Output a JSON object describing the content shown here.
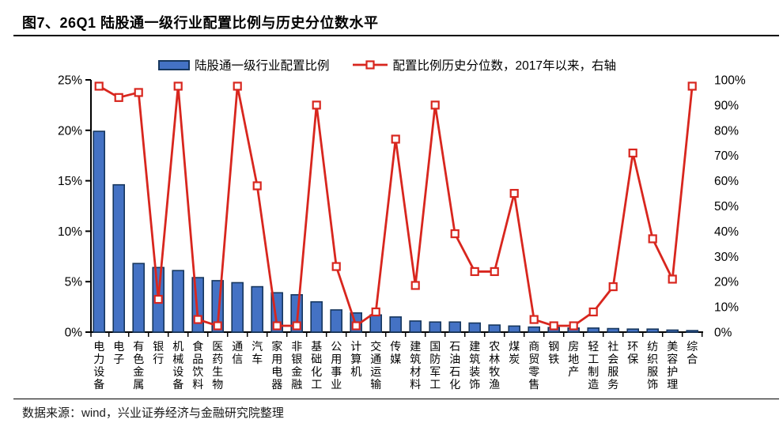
{
  "header": {
    "title": "图7、26Q1 陆股通一级行业配置比例与历史分位数水平"
  },
  "legend": {
    "bar_label": "陆股通一级行业配置比例",
    "line_label": "配置比例历史分位数，2017年以来，右轴"
  },
  "footer": {
    "source": "数据来源：wind，兴业证券经济与金融研究院整理"
  },
  "colors": {
    "bar_fill": "#4472c4",
    "bar_border": "#17375e",
    "line_red": "#d8261e",
    "axis_black": "#000000"
  },
  "chart_data": {
    "type": "bar",
    "combo": "bar+line",
    "title": "图7、26Q1 陆股通一级行业配置比例与历史分位数水平",
    "categories": [
      "电力设备",
      "电子",
      "有色金属",
      "银行",
      "机械设备",
      "食品饮料",
      "医药生物",
      "通信",
      "汽车",
      "家用电器",
      "非银金融",
      "基础化工",
      "公用事业",
      "计算机",
      "交通运输",
      "传媒",
      "建筑材料",
      "国防军工",
      "石油石化",
      "建筑装饰",
      "农林牧渔",
      "煤炭",
      "商贸零售",
      "钢铁",
      "房地产",
      "轻工制造",
      "社会服务",
      "环保",
      "纺织服饰",
      "美容护理",
      "综合"
    ],
    "series": [
      {
        "name": "陆股通一级行业配置比例",
        "type": "bar",
        "axis": "left",
        "values": [
          19.9,
          14.6,
          6.8,
          6.4,
          6.1,
          5.4,
          5.1,
          4.9,
          4.5,
          3.9,
          3.7,
          3.0,
          2.2,
          1.9,
          1.7,
          1.5,
          1.1,
          1.0,
          1.0,
          0.9,
          0.7,
          0.6,
          0.5,
          0.45,
          0.4,
          0.4,
          0.35,
          0.3,
          0.3,
          0.2,
          0.15
        ]
      },
      {
        "name": "配置比例历史分位数，2017年以来，右轴",
        "type": "line",
        "axis": "right",
        "marker": "hollow-square",
        "values": [
          97.5,
          93,
          95,
          13,
          97.5,
          5,
          2.5,
          97.5,
          58,
          2.5,
          2.5,
          90,
          26,
          2.5,
          8,
          76.5,
          18.5,
          90,
          39,
          24,
          24,
          55,
          5,
          2.5,
          2.5,
          8,
          18,
          71,
          37,
          21,
          97.5
        ]
      }
    ],
    "left_axis": {
      "min": 0,
      "max": 25,
      "ticks": [
        "0%",
        "5%",
        "10%",
        "15%",
        "20%",
        "25%"
      ]
    },
    "right_axis": {
      "min": 0,
      "max": 100,
      "ticks": [
        "0%",
        "10%",
        "20%",
        "30%",
        "40%",
        "50%",
        "60%",
        "70%",
        "80%",
        "90%",
        "100%"
      ]
    },
    "grid": false,
    "legend_position": "top"
  }
}
